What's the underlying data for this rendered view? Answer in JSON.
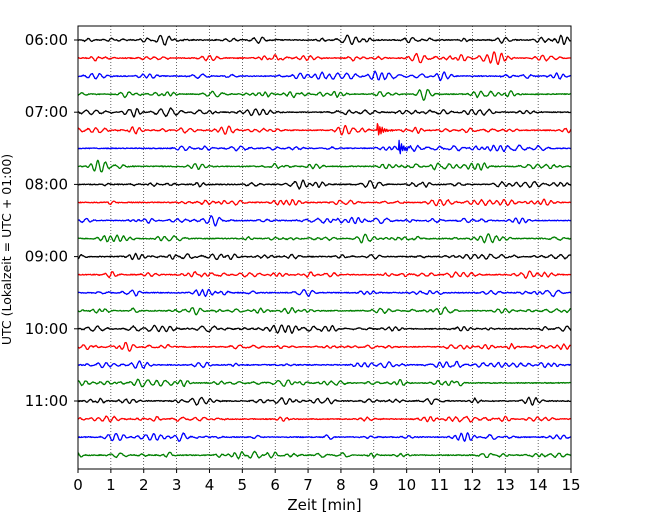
{
  "chart_data": {
    "type": "line",
    "title": "",
    "xlabel": "Zeit  [min]",
    "ylabel": "UTC (Lokalzeit = UTC + 01:00)",
    "xlim": [
      0,
      15
    ],
    "x_ticks": [
      0,
      1,
      2,
      3,
      4,
      5,
      6,
      7,
      8,
      9,
      10,
      11,
      12,
      13,
      14,
      15
    ],
    "grid": "vertical-dotted",
    "trace_interval_min": 15,
    "trace_colors": [
      "#000000",
      "#ff0000",
      "#0000ff",
      "#008000"
    ],
    "y_tick_labels": [
      "06:00",
      "07:00",
      "08:00",
      "09:00",
      "10:00",
      "11:00"
    ],
    "traces": [
      {
        "start": "06:00",
        "color": "#000000"
      },
      {
        "start": "06:15",
        "color": "#ff0000"
      },
      {
        "start": "06:30",
        "color": "#0000ff"
      },
      {
        "start": "06:45",
        "color": "#008000"
      },
      {
        "start": "07:00",
        "color": "#000000"
      },
      {
        "start": "07:15",
        "color": "#ff0000"
      },
      {
        "start": "07:30",
        "color": "#0000ff"
      },
      {
        "start": "07:45",
        "color": "#008000"
      },
      {
        "start": "08:00",
        "color": "#000000"
      },
      {
        "start": "08:15",
        "color": "#ff0000"
      },
      {
        "start": "08:30",
        "color": "#0000ff"
      },
      {
        "start": "08:45",
        "color": "#008000"
      },
      {
        "start": "09:00",
        "color": "#000000"
      },
      {
        "start": "09:15",
        "color": "#ff0000"
      },
      {
        "start": "09:30",
        "color": "#0000ff"
      },
      {
        "start": "09:45",
        "color": "#008000"
      },
      {
        "start": "10:00",
        "color": "#000000"
      },
      {
        "start": "10:15",
        "color": "#ff0000"
      },
      {
        "start": "10:30",
        "color": "#0000ff"
      },
      {
        "start": "10:45",
        "color": "#008000"
      },
      {
        "start": "11:00",
        "color": "#000000"
      },
      {
        "start": "11:15",
        "color": "#ff0000"
      },
      {
        "start": "11:30",
        "color": "#0000ff"
      },
      {
        "start": "11:45",
        "color": "#008000"
      }
    ],
    "events": [
      {
        "trace": "07:15",
        "x_min": 9.1
      },
      {
        "trace": "07:30",
        "x_min": 9.75
      }
    ]
  }
}
